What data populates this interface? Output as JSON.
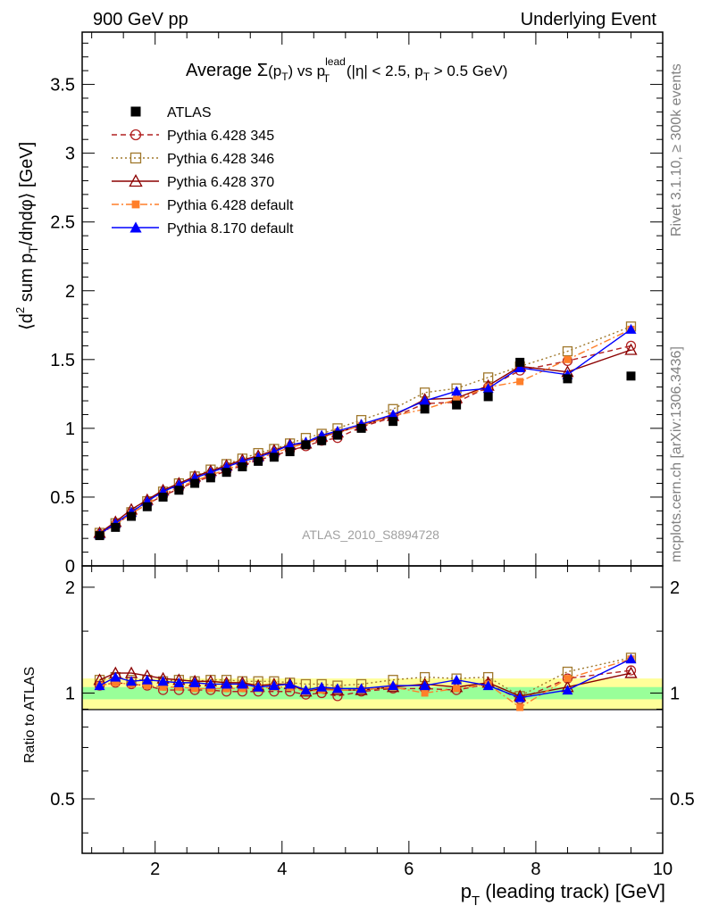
{
  "header": {
    "left": "900 GeV pp",
    "right": "Underlying Event",
    "title_parts": {
      "prefix": "Average ",
      "sigma": "Σ",
      "pt_open": "(p",
      "pt_sub": "T",
      "pt_close": ")",
      "vs": " vs p",
      "lead_sup": "lead",
      "lead_sub": "T",
      "cut1": " (|η| < 2.5, p",
      "cut_sub": "T",
      "cut2": " > 0.5 GeV)"
    },
    "analysis_tag": "ATLAS_2010_S8894728",
    "side_right_top": "Rivet 3.1.10, ≥ 300k events",
    "side_right_bottom": "mcplots.cern.ch [arXiv:1306.3436]"
  },
  "axes": {
    "ylabel_parts": {
      "open": "⟨d",
      "sup2": "2",
      "mid": " sum p",
      "sub": "T",
      "close": "/dηdφ⟩ [GeV]"
    },
    "xlabel_parts": {
      "p": "p",
      "sub": "T",
      "rest": " (leading track) [GeV]"
    },
    "ratio_ylabel": "Ratio to ATLAS"
  },
  "chart_data": [
    {
      "type": "scatter",
      "panel": "main",
      "xlim": [
        0.85,
        10.0
      ],
      "ylim": [
        0,
        3.88
      ],
      "x": [
        1.125,
        1.375,
        1.625,
        1.875,
        2.125,
        2.375,
        2.625,
        2.875,
        3.125,
        3.375,
        3.625,
        3.875,
        4.125,
        4.375,
        4.625,
        4.875,
        5.25,
        5.75,
        6.25,
        6.75,
        7.25,
        7.75,
        8.5,
        9.5
      ],
      "x_ticks": [
        2,
        4,
        6,
        8,
        10
      ],
      "y_ticks": [
        0,
        0.5,
        1,
        1.5,
        2,
        2.5,
        3,
        3.5
      ],
      "y_tick_labels": [
        "0",
        "0.5",
        "1",
        "1.5",
        "2",
        "2.5",
        "3",
        "3.5"
      ],
      "series": [
        {
          "name": "ATLAS",
          "color": "#000000",
          "marker": "filled-square",
          "style": "none",
          "values": [
            0.22,
            0.28,
            0.36,
            0.43,
            0.5,
            0.55,
            0.6,
            0.64,
            0.68,
            0.72,
            0.76,
            0.79,
            0.83,
            0.88,
            0.91,
            0.95,
            1.0,
            1.05,
            1.14,
            1.17,
            1.23,
            1.48,
            1.36,
            1.38
          ]
        },
        {
          "name": "Pythia 6.428 345",
          "color": "#b22222",
          "marker": "open-circle",
          "style": "dashed",
          "values": [
            0.23,
            0.3,
            0.38,
            0.45,
            0.51,
            0.56,
            0.61,
            0.65,
            0.69,
            0.73,
            0.77,
            0.8,
            0.84,
            0.87,
            0.91,
            0.93,
            1.01,
            1.08,
            1.18,
            1.19,
            1.3,
            1.42,
            1.49,
            1.6
          ]
        },
        {
          "name": "Pythia 6.428 346",
          "color": "#a0782c",
          "marker": "open-square",
          "style": "dotted",
          "values": [
            0.24,
            0.31,
            0.39,
            0.47,
            0.54,
            0.6,
            0.65,
            0.7,
            0.74,
            0.78,
            0.82,
            0.85,
            0.89,
            0.93,
            0.96,
            1.0,
            1.06,
            1.14,
            1.26,
            1.29,
            1.37,
            1.45,
            1.56,
            1.74
          ]
        },
        {
          "name": "Pythia 6.428 370",
          "color": "#8b0000",
          "marker": "open-triangle",
          "style": "solid",
          "values": [
            0.24,
            0.32,
            0.41,
            0.48,
            0.55,
            0.6,
            0.65,
            0.69,
            0.73,
            0.77,
            0.8,
            0.84,
            0.88,
            0.89,
            0.94,
            0.97,
            1.02,
            1.09,
            1.21,
            1.22,
            1.31,
            1.45,
            1.41,
            1.57
          ]
        },
        {
          "name": "Pythia 6.428 default",
          "color": "#ff7f2a",
          "marker": "filled-square-small",
          "style": "dashdot",
          "values": [
            0.23,
            0.3,
            0.38,
            0.45,
            0.52,
            0.57,
            0.62,
            0.66,
            0.7,
            0.74,
            0.78,
            0.82,
            0.86,
            0.89,
            0.93,
            0.97,
            1.02,
            1.09,
            1.14,
            1.21,
            1.3,
            1.34,
            1.5,
            1.72
          ]
        },
        {
          "name": "Pythia 8.170 default",
          "color": "#0000ff",
          "marker": "filled-triangle",
          "style": "solid",
          "values": [
            0.23,
            0.31,
            0.39,
            0.47,
            0.54,
            0.59,
            0.64,
            0.68,
            0.72,
            0.76,
            0.79,
            0.83,
            0.88,
            0.9,
            0.95,
            0.98,
            1.03,
            1.1,
            1.2,
            1.27,
            1.29,
            1.44,
            1.39,
            1.72
          ]
        }
      ],
      "legend": "top-left"
    },
    {
      "type": "scatter",
      "panel": "ratio",
      "xlim": [
        0.85,
        10.0
      ],
      "ylim": [
        0.35,
        2.3
      ],
      "y_scale": "log",
      "y_ticks": [
        0.5,
        1,
        2
      ],
      "y_tick_labels": [
        "0.5",
        "1",
        "2"
      ],
      "band_inner": [
        0.96,
        1.04
      ],
      "band_outer": [
        0.9,
        1.1
      ],
      "series": [
        {
          "name": "Pythia 6.428 345",
          "values": [
            1.05,
            1.07,
            1.06,
            1.05,
            1.02,
            1.02,
            1.02,
            1.02,
            1.01,
            1.01,
            1.01,
            1.01,
            1.01,
            0.99,
            1.0,
            0.98,
            1.01,
            1.03,
            1.03,
            1.02,
            1.06,
            0.96,
            1.1,
            1.16
          ]
        },
        {
          "name": "Pythia 6.428 346",
          "values": [
            1.09,
            1.11,
            1.09,
            1.09,
            1.08,
            1.09,
            1.08,
            1.09,
            1.09,
            1.08,
            1.08,
            1.08,
            1.07,
            1.06,
            1.06,
            1.05,
            1.06,
            1.09,
            1.11,
            1.1,
            1.11,
            0.98,
            1.15,
            1.26
          ]
        },
        {
          "name": "Pythia 6.428 370",
          "values": [
            1.09,
            1.14,
            1.14,
            1.12,
            1.1,
            1.09,
            1.08,
            1.08,
            1.07,
            1.07,
            1.05,
            1.06,
            1.06,
            1.01,
            1.03,
            1.02,
            1.02,
            1.04,
            1.06,
            1.04,
            1.07,
            0.98,
            1.04,
            1.14
          ]
        },
        {
          "name": "Pythia 6.428 default",
          "values": [
            1.05,
            1.07,
            1.06,
            1.05,
            1.04,
            1.04,
            1.03,
            1.03,
            1.03,
            1.03,
            1.03,
            1.04,
            1.04,
            1.01,
            1.02,
            1.02,
            1.02,
            1.04,
            1.0,
            1.03,
            1.06,
            0.91,
            1.1,
            1.25
          ]
        },
        {
          "name": "Pythia 8.170 default",
          "values": [
            1.05,
            1.11,
            1.08,
            1.09,
            1.08,
            1.07,
            1.07,
            1.06,
            1.06,
            1.06,
            1.04,
            1.05,
            1.06,
            1.02,
            1.04,
            1.03,
            1.03,
            1.05,
            1.05,
            1.09,
            1.05,
            0.97,
            1.02,
            1.25
          ]
        }
      ]
    }
  ]
}
